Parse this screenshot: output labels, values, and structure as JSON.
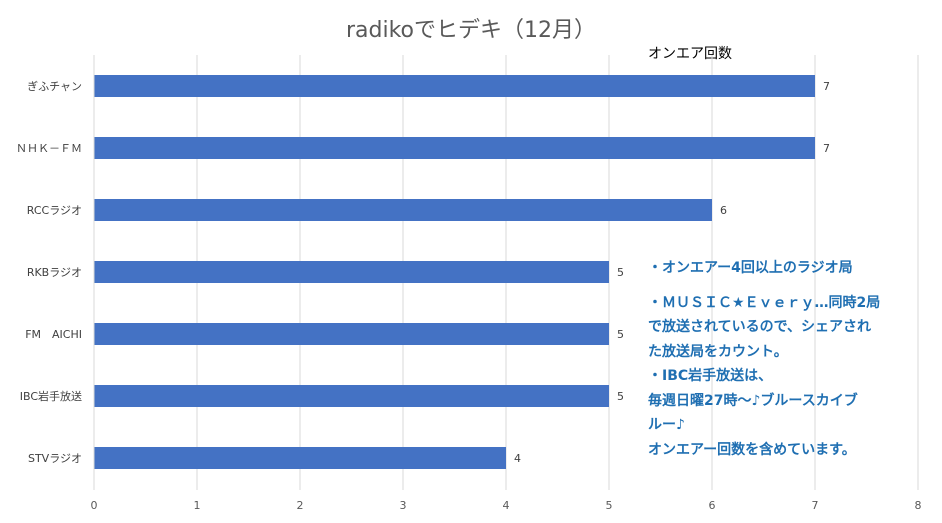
{
  "chart_data": {
    "type": "bar",
    "orientation": "horizontal",
    "title": "radikoでヒデキ（12月）",
    "subtitle": "オンエア回数",
    "categories": [
      "ぎふチャン",
      "ＮＨＫ－ＦＭ",
      "RCCラジオ",
      "RKBラジオ",
      "FM　AICHI",
      "IBC岩手放送",
      "STVラジオ"
    ],
    "values": [
      7,
      7,
      6,
      5,
      5,
      5,
      4
    ],
    "xlim": [
      0,
      8
    ],
    "x_ticks": [
      "0",
      "1",
      "2",
      "3",
      "4",
      "5",
      "6",
      "7",
      "8"
    ],
    "grid": true,
    "bar_color": "#4472c4",
    "data_labels": true
  },
  "notes": [
    "・オンエアー4回以上のラジオ局",
    "・ＭＵＳＩＣ★Ｅｖｅｒｙ…同時2局",
    "で放送されているので、シェアされ",
    "た放送局をカウント。",
    "・IBC岩手放送は、",
    "毎週日曜27時～♪ブルースカイブ",
    "ルー♪",
    "オンエアー回数を含めています。"
  ],
  "colors": {
    "note_text": "#1f6fb2",
    "title_text": "#595959"
  }
}
